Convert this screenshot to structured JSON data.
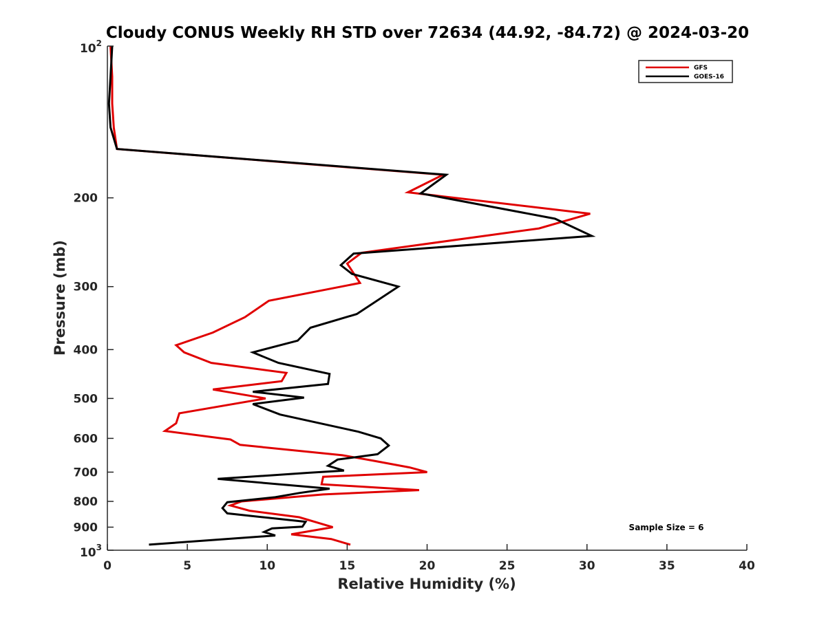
{
  "chart_data": {
    "type": "line",
    "title": "Cloudy CONUS Weekly RH STD over 72634 (44.92, -84.72) @ 2024-03-20",
    "xlabel": "Relative Humidity (%)",
    "ylabel": "Pressure (mb)",
    "xlim": [
      0,
      40
    ],
    "ylim": [
      100,
      1000
    ],
    "y_scale": "log",
    "y_reversed": true,
    "grid": false,
    "legend_position": "top-right",
    "x_ticks": [
      0,
      5,
      10,
      15,
      20,
      25,
      30,
      35,
      40
    ],
    "y_ticks": [
      {
        "value": 100,
        "base": "10",
        "exp": "2"
      },
      {
        "value": 200,
        "label": "200"
      },
      {
        "value": 300,
        "label": "300"
      },
      {
        "value": 400,
        "label": "400"
      },
      {
        "value": 500,
        "label": "500"
      },
      {
        "value": 600,
        "label": "600"
      },
      {
        "value": 700,
        "label": "700"
      },
      {
        "value": 800,
        "label": "800"
      },
      {
        "value": 900,
        "label": "900"
      },
      {
        "value": 1000,
        "base": "10",
        "exp": "3"
      }
    ],
    "annotation": "Sample Size = 6",
    "series": [
      {
        "name": "GFS",
        "color": "#e00000",
        "points": [
          [
            0.2,
            100
          ],
          [
            0.3,
            115
          ],
          [
            0.3,
            130
          ],
          [
            0.4,
            145
          ],
          [
            0.6,
            160
          ],
          [
            21.0,
            180
          ],
          [
            18.8,
            195
          ],
          [
            30.2,
            215
          ],
          [
            27.0,
            230
          ],
          [
            15.9,
            257
          ],
          [
            15.0,
            270
          ],
          [
            15.8,
            295
          ],
          [
            10.1,
            320
          ],
          [
            8.6,
            345
          ],
          [
            6.6,
            370
          ],
          [
            4.3,
            392
          ],
          [
            4.8,
            405
          ],
          [
            6.5,
            425
          ],
          [
            11.2,
            445
          ],
          [
            10.9,
            462
          ],
          [
            6.6,
            480
          ],
          [
            9.9,
            500
          ],
          [
            4.5,
            535
          ],
          [
            4.3,
            560
          ],
          [
            3.6,
            580
          ],
          [
            7.7,
            603
          ],
          [
            8.3,
            618
          ],
          [
            14.7,
            648
          ],
          [
            16.7,
            665
          ],
          [
            18.9,
            685
          ],
          [
            20.0,
            700
          ],
          [
            13.5,
            715
          ],
          [
            13.4,
            740
          ],
          [
            19.5,
            760
          ],
          [
            13.5,
            775
          ],
          [
            8.4,
            800
          ],
          [
            7.7,
            815
          ],
          [
            8.9,
            835
          ],
          [
            12.0,
            860
          ],
          [
            14.1,
            900
          ],
          [
            11.5,
            930
          ],
          [
            14.0,
            950
          ],
          [
            15.2,
            975
          ]
        ]
      },
      {
        "name": "GOES-16",
        "color": "#000000",
        "points": [
          [
            0.3,
            100
          ],
          [
            0.2,
            115
          ],
          [
            0.1,
            130
          ],
          [
            0.2,
            145
          ],
          [
            0.6,
            160
          ],
          [
            21.2,
            180
          ],
          [
            19.6,
            196
          ],
          [
            28.0,
            220
          ],
          [
            30.3,
            238
          ],
          [
            15.4,
            258
          ],
          [
            14.6,
            272
          ],
          [
            15.3,
            283
          ],
          [
            18.2,
            300
          ],
          [
            15.6,
            340
          ],
          [
            12.7,
            362
          ],
          [
            11.9,
            384
          ],
          [
            9.1,
            405
          ],
          [
            10.7,
            425
          ],
          [
            13.9,
            447
          ],
          [
            13.8,
            468
          ],
          [
            9.1,
            485
          ],
          [
            12.3,
            498
          ],
          [
            9.1,
            513
          ],
          [
            10.8,
            538
          ],
          [
            15.7,
            582
          ],
          [
            17.1,
            600
          ],
          [
            17.6,
            620
          ],
          [
            16.9,
            645
          ],
          [
            14.4,
            661
          ],
          [
            13.8,
            680
          ],
          [
            14.8,
            695
          ],
          [
            12.6,
            702
          ],
          [
            6.9,
            722
          ],
          [
            13.9,
            755
          ],
          [
            12.0,
            770
          ],
          [
            10.5,
            785
          ],
          [
            7.5,
            803
          ],
          [
            7.2,
            825
          ],
          [
            7.5,
            845
          ],
          [
            12.4,
            878
          ],
          [
            12.2,
            898
          ],
          [
            10.3,
            905
          ],
          [
            9.8,
            920
          ],
          [
            10.5,
            935
          ],
          [
            2.6,
            975
          ]
        ]
      }
    ]
  }
}
